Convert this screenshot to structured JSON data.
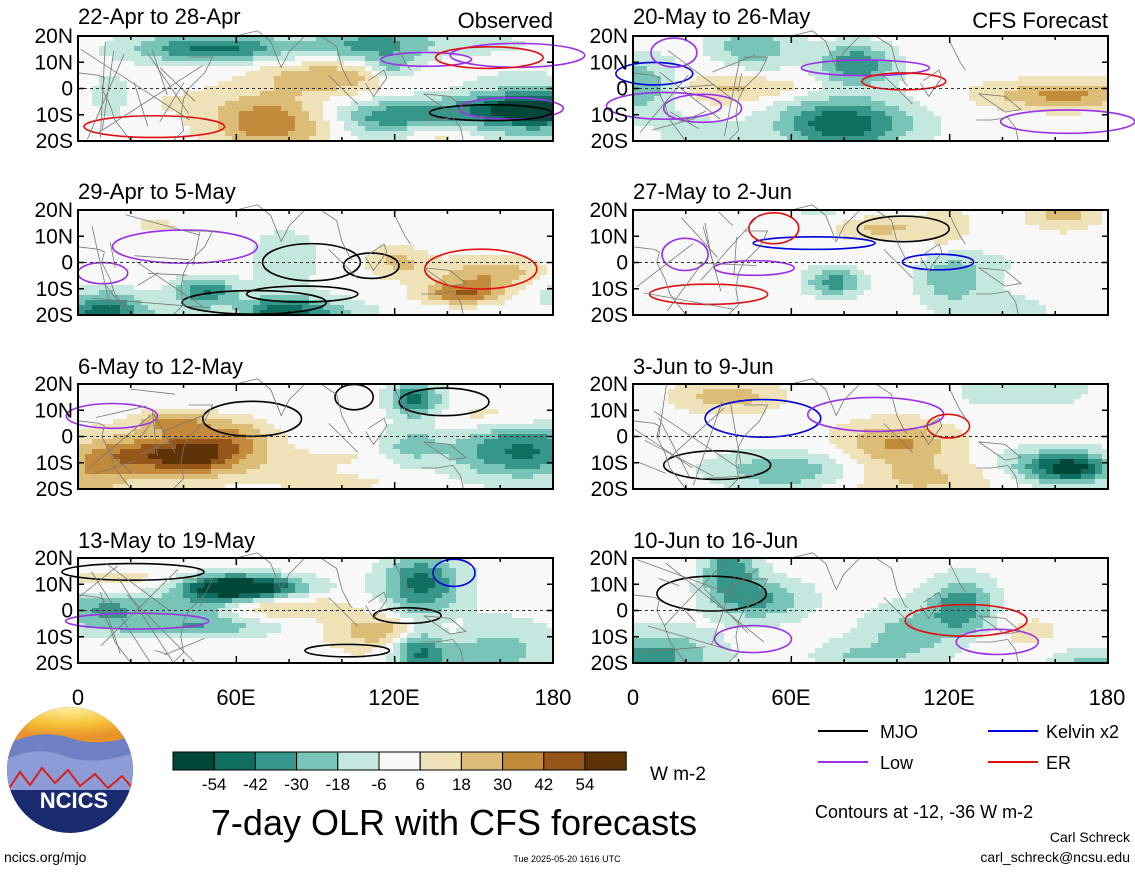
{
  "header": {
    "observed_label": "Observed",
    "forecast_label": "CFS Forecast"
  },
  "panels": {
    "left": [
      {
        "date": "22-Apr to 28-Apr"
      },
      {
        "date": "29-Apr to 5-May"
      },
      {
        "date": "6-May to 12-May"
      },
      {
        "date": "13-May to 19-May"
      }
    ],
    "right": [
      {
        "date": "20-May to 26-May"
      },
      {
        "date": "27-May to 2-Jun"
      },
      {
        "date": "3-Jun to 9-Jun"
      },
      {
        "date": "10-Jun to 16-Jun"
      }
    ]
  },
  "chart_data": {
    "type": "heatmap",
    "title": "7-day OLR with CFS forecasts",
    "lat_ticks": [
      "20N",
      "10N",
      "0",
      "10S",
      "20S"
    ],
    "lon_ticks": [
      "0",
      "60E",
      "120E",
      "180"
    ],
    "lat_range": [
      -20,
      20
    ],
    "lon_range": [
      0,
      180
    ],
    "colorbar": {
      "ticks": [
        "-54",
        "-42",
        "-30",
        "-18",
        "-6",
        "6",
        "18",
        "30",
        "42",
        "54"
      ],
      "units": "W m-2",
      "colors": [
        "#00473a",
        "#0f6e60",
        "#37968a",
        "#78c4b8",
        "#c4e8e0",
        "#f8f8f8",
        "#f0e2b8",
        "#dcbd78",
        "#c28a3a",
        "#96561a",
        "#5e3306"
      ]
    },
    "contour_legend": [
      {
        "label": "MJO",
        "color": "#000000"
      },
      {
        "label": "Kelvin x2",
        "color": "#0000dd"
      },
      {
        "label": "Low",
        "color": "#9b30e6"
      },
      {
        "label": "ER",
        "color": "#e01010"
      }
    ],
    "contour_note": "Contours at -12, -36 W m-2"
  },
  "footer": {
    "logo_text": "NCICS",
    "url": "ncics.org/mjo",
    "timestamp": "Tue 2025-05-20 1616 UTC",
    "author": "Carl Schreck",
    "email": "carl_schreck@ncsu.edu"
  }
}
